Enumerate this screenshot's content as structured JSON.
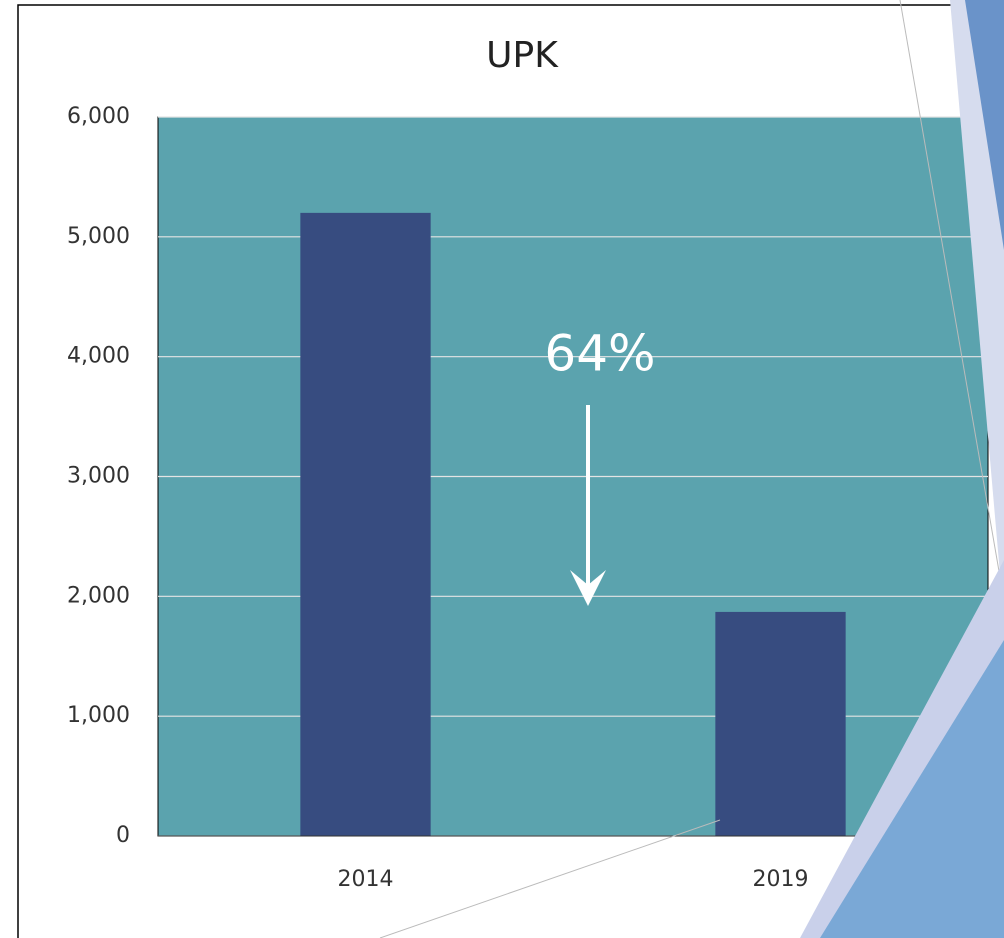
{
  "chart_data": {
    "type": "bar",
    "title": "UPK",
    "categories": [
      "2014",
      "2019"
    ],
    "values": [
      5200,
      1870
    ],
    "color": "#374c80",
    "ylim": [
      0,
      6000
    ],
    "yticks": [
      0,
      {
        "value": 1000,
        "label": "1,000"
      },
      {
        "value": 2000,
        "label": "2,000"
      },
      {
        "value": 3000,
        "label": "3,000"
      },
      {
        "value": 4000,
        "label": "4,000"
      },
      {
        "value": 5000,
        "label": "5,000"
      },
      {
        "value": 6000,
        "label": "6,000"
      }
    ],
    "grid": true,
    "plot_background": "#5ba3ae",
    "annotation": "64%"
  }
}
